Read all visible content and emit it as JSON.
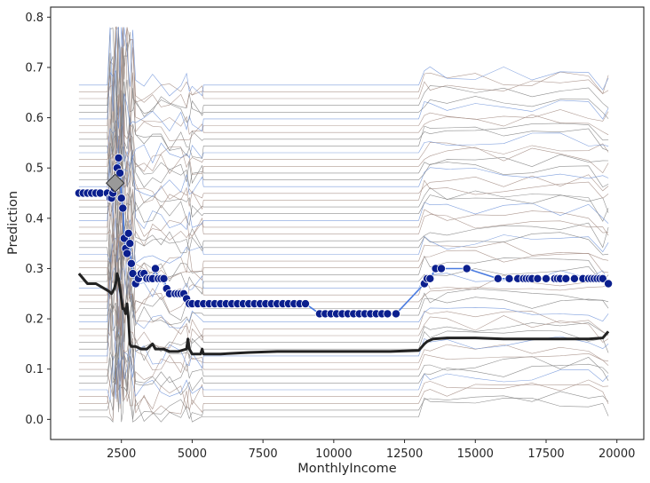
{
  "chart_data": {
    "type": "line",
    "title": "",
    "xlabel": "MonthlyIncome",
    "ylabel": "Prediction",
    "xlim": [
      0,
      20950
    ],
    "ylim": [
      -0.04,
      0.82
    ],
    "xticks": [
      2500,
      5000,
      7500,
      10000,
      12500,
      15000,
      17500,
      20000
    ],
    "xtick_labels": [
      "2500",
      "5000",
      "7500",
      "10000",
      "12500",
      "15000",
      "17500",
      "20000"
    ],
    "yticks": [
      0.0,
      0.1,
      0.2,
      0.3,
      0.4,
      0.5,
      0.6,
      0.7,
      0.8
    ],
    "ytick_labels": [
      "0.0",
      "0.1",
      "0.2",
      "0.3",
      "0.4",
      "0.5",
      "0.6",
      "0.7",
      "0.8"
    ],
    "grid": false,
    "legend": "none",
    "ice_line_count": 50,
    "colors": {
      "ice_lines": "#7a7a7a",
      "ice_alt": "#a1887f",
      "ice_blue": "#6a8fd8",
      "average": "#222222",
      "highlight_line": "#4a7be0",
      "highlight_points": "#0b1f8e",
      "highlight_point_edge": "#ffffff",
      "marker": "#999999"
    },
    "series": [
      {
        "role": "average",
        "x": [
          1000,
          1300,
          1600,
          1900,
          2050,
          2150,
          2250,
          2300,
          2350,
          2400,
          2450,
          2500,
          2550,
          2600,
          2650,
          2700,
          2750,
          2800,
          2850,
          2900,
          3000,
          3200,
          3400,
          3600,
          3700,
          3800,
          4000,
          4200,
          4500,
          4800,
          4850,
          4900,
          4950,
          5000,
          5300,
          5350,
          5400,
          6000,
          7000,
          8000,
          9000,
          10000,
          11000,
          12000,
          13000,
          13200,
          13300,
          13500,
          14000,
          15000,
          16000,
          17000,
          18000,
          19000,
          19500,
          19700
        ],
        "y": [
          0.29,
          0.27,
          0.27,
          0.26,
          0.255,
          0.25,
          0.26,
          0.27,
          0.29,
          0.28,
          0.26,
          0.24,
          0.22,
          0.22,
          0.21,
          0.23,
          0.2,
          0.15,
          0.145,
          0.145,
          0.145,
          0.14,
          0.14,
          0.15,
          0.14,
          0.14,
          0.14,
          0.135,
          0.135,
          0.14,
          0.16,
          0.14,
          0.135,
          0.13,
          0.13,
          0.14,
          0.13,
          0.13,
          0.133,
          0.135,
          0.135,
          0.135,
          0.135,
          0.135,
          0.137,
          0.15,
          0.155,
          0.16,
          0.162,
          0.162,
          0.16,
          0.16,
          0.16,
          0.16,
          0.162,
          0.175
        ]
      },
      {
        "role": "highlighted-instance",
        "x": [
          1000,
          1150,
          1300,
          1450,
          1600,
          1750,
          2000,
          2100,
          2150,
          2200,
          2250,
          2300,
          2350,
          2400,
          2450,
          2500,
          2550,
          2600,
          2650,
          2700,
          2750,
          2800,
          2850,
          2900,
          3000,
          3100,
          3200,
          3300,
          3400,
          3500,
          3600,
          3700,
          3800,
          3900,
          4000,
          4100,
          4200,
          4400,
          4500,
          4600,
          4700,
          4800,
          4900,
          5000,
          5200,
          5400,
          5600,
          5800,
          6000,
          6200,
          6400,
          6600,
          6800,
          7000,
          7200,
          7400,
          7600,
          7800,
          8000,
          8200,
          8400,
          8600,
          8800,
          9000,
          9500,
          9700,
          9900,
          10100,
          10300,
          10500,
          10700,
          10900,
          11100,
          11300,
          11500,
          11700,
          11900,
          12200,
          13200,
          13300,
          13400,
          13600,
          13800,
          14700,
          15800,
          16200,
          16500,
          16700,
          16800,
          16900,
          17000,
          17200,
          17500,
          17800,
          17900,
          18000,
          18200,
          18500,
          18800,
          19000,
          19100,
          19200,
          19300,
          19400,
          19500,
          19700
        ],
        "y": [
          0.45,
          0.45,
          0.45,
          0.45,
          0.45,
          0.45,
          0.45,
          0.44,
          0.44,
          0.45,
          0.46,
          0.48,
          0.5,
          0.52,
          0.49,
          0.44,
          0.42,
          0.36,
          0.34,
          0.33,
          0.37,
          0.35,
          0.31,
          0.29,
          0.27,
          0.28,
          0.29,
          0.29,
          0.28,
          0.28,
          0.28,
          0.3,
          0.28,
          0.28,
          0.28,
          0.26,
          0.25,
          0.25,
          0.25,
          0.25,
          0.25,
          0.24,
          0.23,
          0.23,
          0.23,
          0.23,
          0.23,
          0.23,
          0.23,
          0.23,
          0.23,
          0.23,
          0.23,
          0.23,
          0.23,
          0.23,
          0.23,
          0.23,
          0.23,
          0.23,
          0.23,
          0.23,
          0.23,
          0.23,
          0.21,
          0.21,
          0.21,
          0.21,
          0.21,
          0.21,
          0.21,
          0.21,
          0.21,
          0.21,
          0.21,
          0.21,
          0.21,
          0.21,
          0.27,
          0.28,
          0.28,
          0.3,
          0.3,
          0.3,
          0.28,
          0.28,
          0.28,
          0.28,
          0.28,
          0.28,
          0.28,
          0.28,
          0.28,
          0.28,
          0.28,
          0.28,
          0.28,
          0.28,
          0.28,
          0.28,
          0.28,
          0.28,
          0.28,
          0.28,
          0.28,
          0.27
        ]
      }
    ],
    "marker": {
      "shape": "diamond",
      "x": 2280,
      "y": 0.47
    }
  }
}
